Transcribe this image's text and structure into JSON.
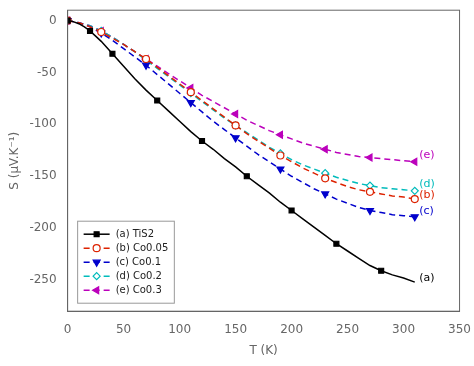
{
  "chart_data": {
    "type": "line",
    "xlabel": "T (K)",
    "ylabel": "S (μV.K⁻¹)",
    "xlim": [
      0,
      350
    ],
    "ylim": [
      -280,
      10
    ],
    "xticks": [
      0,
      50,
      100,
      150,
      200,
      250,
      300,
      350
    ],
    "yticks": [
      0,
      -50,
      -100,
      -150,
      -200,
      -250
    ],
    "grid": false,
    "legend": "lower left",
    "series": [
      {
        "name": "(a) TiS2",
        "color": "#000000",
        "line_style": "solid",
        "marker": "square",
        "x": [
          0,
          5,
          10,
          15,
          20,
          25,
          30,
          35,
          40,
          50,
          60,
          70,
          80,
          90,
          100,
          110,
          120,
          130,
          140,
          150,
          160,
          170,
          180,
          190,
          200,
          210,
          220,
          230,
          240,
          250,
          260,
          270,
          280,
          290,
          300,
          310
        ],
        "values": [
          0,
          -1,
          -3,
          -6,
          -10,
          -15,
          -20,
          -26,
          -32,
          -44,
          -56,
          -67,
          -77,
          -87,
          -97,
          -107,
          -116,
          -124,
          -133,
          -141,
          -150,
          -158,
          -166,
          -175,
          -183,
          -191,
          -199,
          -207,
          -215,
          -222,
          -229,
          -236,
          -241,
          -245,
          -248,
          -252
        ]
      },
      {
        "name": "(b) Co0.05",
        "color": "#dd2200",
        "line_style": "dashed",
        "marker": "circle-open",
        "x": [
          0,
          5,
          10,
          20,
          30,
          40,
          50,
          60,
          70,
          80,
          90,
          100,
          110,
          120,
          130,
          140,
          150,
          160,
          170,
          180,
          190,
          200,
          210,
          220,
          230,
          240,
          250,
          260,
          270,
          280,
          290,
          300,
          310
        ],
        "values": [
          0,
          -1,
          -2,
          -6,
          -11,
          -17,
          -23,
          -30,
          -37,
          -45,
          -53,
          -61,
          -69,
          -77,
          -85,
          -93,
          -101,
          -109,
          -116,
          -123,
          -130,
          -136,
          -142,
          -147,
          -152,
          -156,
          -160,
          -163,
          -165,
          -167,
          -169,
          -170,
          -172
        ]
      },
      {
        "name": "(c) Co0.1",
        "color": "#0000cc",
        "line_style": "dashed",
        "marker": "triangle-down",
        "x": [
          0,
          5,
          10,
          20,
          30,
          40,
          50,
          60,
          70,
          80,
          90,
          100,
          110,
          120,
          130,
          140,
          150,
          160,
          170,
          180,
          190,
          200,
          210,
          220,
          230,
          240,
          250,
          260,
          270,
          280,
          290,
          300,
          310
        ],
        "values": [
          0,
          -1,
          -2,
          -6,
          -12,
          -19,
          -27,
          -35,
          -43,
          -52,
          -61,
          -70,
          -79,
          -88,
          -97,
          -105,
          -113,
          -121,
          -129,
          -136,
          -143,
          -150,
          -156,
          -162,
          -167,
          -172,
          -176,
          -180,
          -183,
          -185,
          -187,
          -188,
          -189
        ]
      },
      {
        "name": "(d) Co0.2",
        "color": "#00bbbb",
        "line_style": "dashed",
        "marker": "diamond-open",
        "x": [
          0,
          5,
          10,
          20,
          30,
          40,
          50,
          60,
          70,
          80,
          90,
          100,
          110,
          120,
          130,
          140,
          150,
          160,
          170,
          180,
          190,
          200,
          210,
          220,
          230,
          240,
          250,
          260,
          270,
          280,
          290,
          300,
          310
        ],
        "values": [
          0,
          -1,
          -2,
          -5,
          -10,
          -16,
          -23,
          -30,
          -38,
          -46,
          -54,
          -62,
          -70,
          -78,
          -86,
          -94,
          -101,
          -108,
          -115,
          -122,
          -128,
          -134,
          -139,
          -143,
          -147,
          -151,
          -154,
          -157,
          -159,
          -161,
          -162,
          -163,
          -164
        ]
      },
      {
        "name": "(e) Co0.3",
        "color": "#bb00bb",
        "line_style": "dashed",
        "marker": "triangle-left",
        "x": [
          0,
          5,
          10,
          20,
          30,
          40,
          50,
          60,
          70,
          80,
          90,
          100,
          110,
          120,
          130,
          140,
          150,
          160,
          170,
          180,
          190,
          200,
          210,
          220,
          230,
          240,
          250,
          260,
          270,
          280,
          290,
          300,
          310
        ],
        "values": [
          0,
          -1,
          -2,
          -5,
          -10,
          -16,
          -23,
          -30,
          -37,
          -44,
          -51,
          -58,
          -65,
          -72,
          -78,
          -84,
          -90,
          -96,
          -101,
          -106,
          -110,
          -114,
          -118,
          -121,
          -124,
          -127,
          -129,
          -131,
          -132,
          -133,
          -134,
          -135,
          -136
        ]
      }
    ],
    "annotations": [
      {
        "text": "(e)",
        "x": 314,
        "y": -130,
        "color": "#bb00bb"
      },
      {
        "text": "(d)",
        "x": 314,
        "y": -158,
        "color": "#00bbbb"
      },
      {
        "text": "(b)",
        "x": 314,
        "y": -168,
        "color": "#dd2200"
      },
      {
        "text": "(c)",
        "x": 314,
        "y": -184,
        "color": "#0000cc"
      },
      {
        "text": "(a)",
        "x": 314,
        "y": -248,
        "color": "#000000"
      }
    ]
  }
}
